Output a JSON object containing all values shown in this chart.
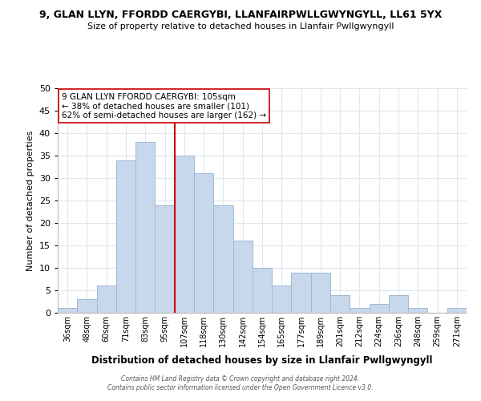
{
  "title_line1": "9, GLAN LLYN, FFORDD CAERGYBI, LLANFAIRPWLLGWYNGYLL, LL61 5YX",
  "title_line2": "Size of property relative to detached houses in Llanfair Pwllgwyngyll",
  "xlabel": "Distribution of detached houses by size in Llanfair Pwllgwyngyll",
  "ylabel": "Number of detached properties",
  "bar_labels": [
    "36sqm",
    "48sqm",
    "60sqm",
    "71sqm",
    "83sqm",
    "95sqm",
    "107sqm",
    "118sqm",
    "130sqm",
    "142sqm",
    "154sqm",
    "165sqm",
    "177sqm",
    "189sqm",
    "201sqm",
    "212sqm",
    "224sqm",
    "236sqm",
    "248sqm",
    "259sqm",
    "271sqm"
  ],
  "bar_heights": [
    1,
    3,
    6,
    34,
    38,
    24,
    35,
    31,
    24,
    16,
    10,
    6,
    9,
    9,
    4,
    1,
    2,
    4,
    1,
    0,
    1
  ],
  "bar_color": "#c8d8ec",
  "bar_edge_color": "#a0b8d0",
  "vline_color": "#cc0000",
  "ylim": [
    0,
    50
  ],
  "yticks": [
    0,
    5,
    10,
    15,
    20,
    25,
    30,
    35,
    40,
    45,
    50
  ],
  "annotation_title": "9 GLAN LLYN FFORDD CAERGYBI: 105sqm",
  "annotation_line2": "← 38% of detached houses are smaller (101)",
  "annotation_line3": "62% of semi-detached houses are larger (162) →",
  "annotation_box_color": "#ffffff",
  "annotation_box_edge": "#cc0000",
  "footer_line1": "Contains HM Land Registry data © Crown copyright and database right 2024.",
  "footer_line2": "Contains public sector information licensed under the Open Government Licence v3.0.",
  "background_color": "#ffffff",
  "grid_color": "#dde8f0"
}
